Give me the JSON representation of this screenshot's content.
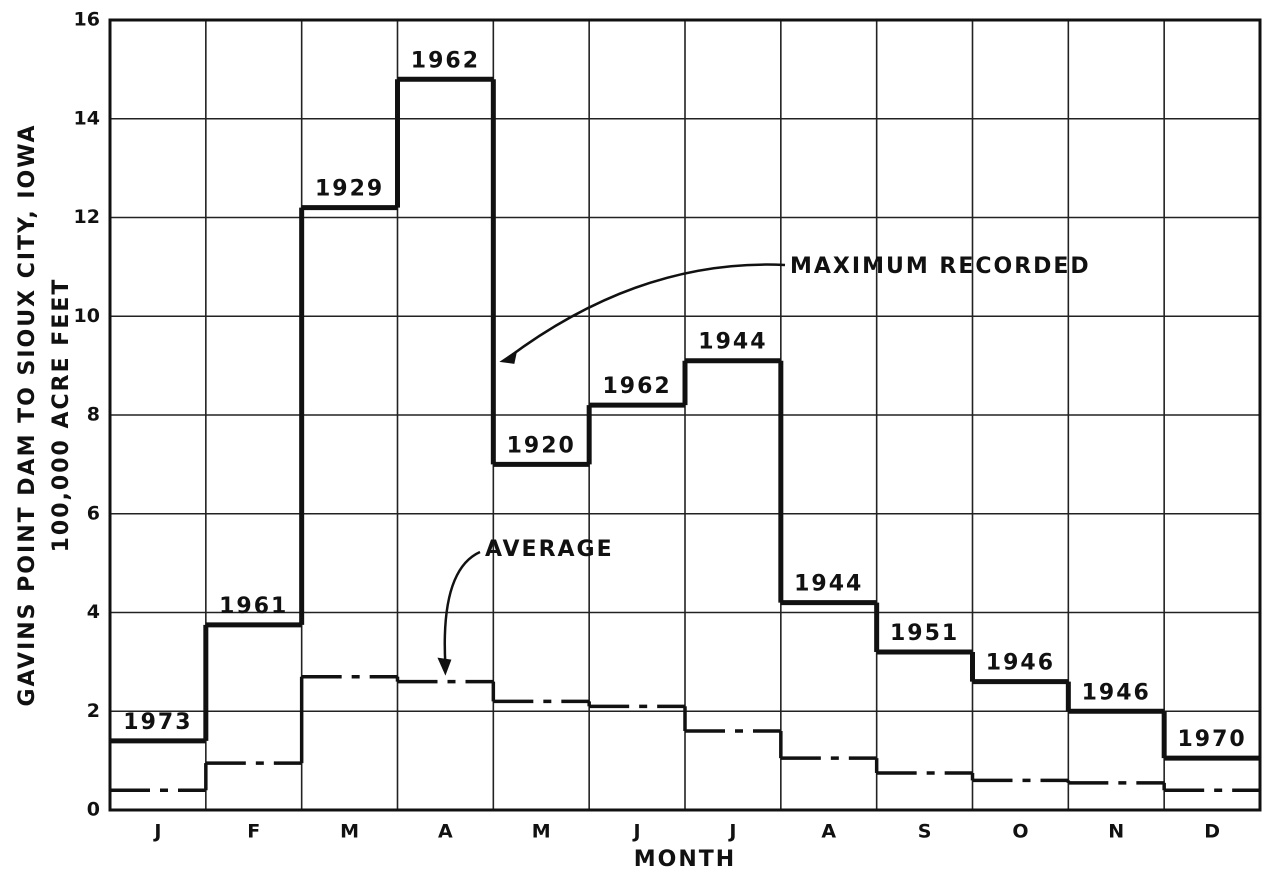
{
  "chart_data": {
    "type": "step",
    "y_label_lines": [
      "GAVINS POINT DAM TO SIOUX CITY, IOWA",
      "100,000 ACRE FEET"
    ],
    "x_label": "MONTH",
    "categories": [
      "J",
      "F",
      "M",
      "A",
      "M",
      "J",
      "J",
      "A",
      "S",
      "O",
      "N",
      "D"
    ],
    "series": [
      {
        "name": "MAXIMUM RECORDED",
        "color": "#111111",
        "style": "solid",
        "values": [
          1.4,
          3.75,
          12.2,
          14.8,
          7.0,
          8.2,
          9.1,
          4.2,
          3.2,
          2.6,
          2.0,
          1.05
        ],
        "labels": [
          "1973",
          "1961",
          "1929",
          "1962",
          "1920",
          "1962",
          "1944",
          "1944",
          "1951",
          "1946",
          "1946",
          "1970"
        ]
      },
      {
        "name": "AVERAGE",
        "color": "#111111",
        "style": "dashed",
        "values": [
          0.4,
          0.95,
          2.7,
          2.6,
          2.2,
          2.1,
          1.6,
          1.05,
          0.75,
          0.6,
          0.55,
          0.4
        ]
      }
    ],
    "ylim": [
      0,
      16
    ],
    "yticks": [
      0,
      2,
      4,
      6,
      8,
      10,
      12,
      14,
      16
    ],
    "grid": true
  }
}
